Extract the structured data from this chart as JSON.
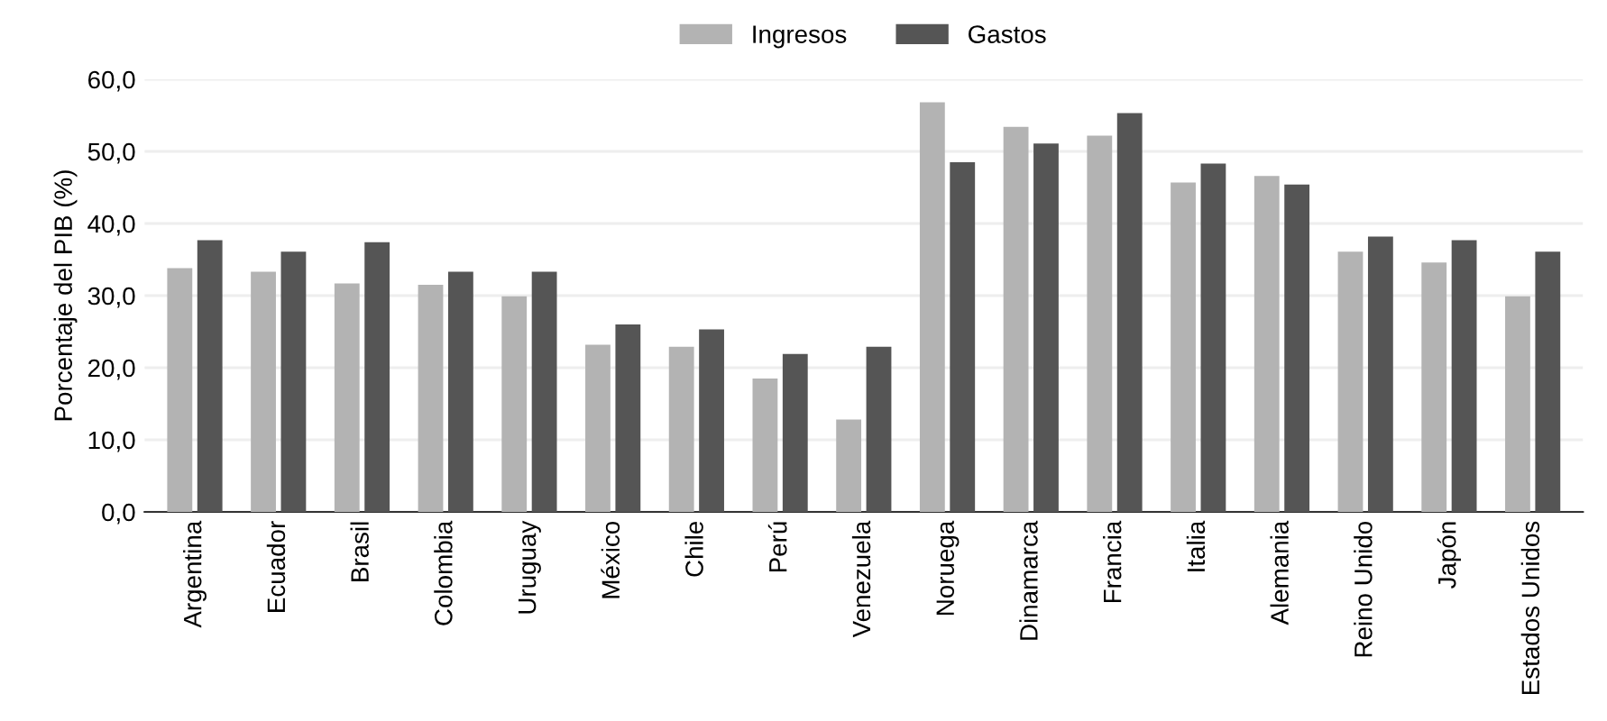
{
  "chart_data": {
    "type": "bar",
    "ylabel": "Porcentaje del PIB (%)",
    "categories": [
      "Argentina",
      "Ecuador",
      "Brasil",
      "Colombia",
      "Uruguay",
      "México",
      "Chile",
      "Perú",
      "Venezuela",
      "Noruega",
      "Dinamarca",
      "Francia",
      "Italia",
      "Alemania",
      "Reino Unido",
      "Japón",
      "Estados Unidos"
    ],
    "series": [
      {
        "name": "Ingresos",
        "color": "#b3b3b3",
        "values": [
          33.8,
          33.3,
          31.7,
          31.5,
          29.9,
          23.2,
          22.9,
          18.5,
          12.8,
          56.8,
          53.4,
          52.2,
          45.7,
          46.6,
          36.1,
          34.6,
          29.9
        ]
      },
      {
        "name": "Gastos",
        "color": "#555555",
        "values": [
          37.7,
          36.1,
          37.4,
          33.3,
          33.3,
          26.0,
          25.3,
          21.9,
          22.9,
          48.5,
          51.1,
          55.3,
          48.3,
          45.4,
          38.2,
          37.7,
          36.1
        ]
      }
    ],
    "ylim": [
      0,
      60
    ],
    "yticks": [
      {
        "value": 0,
        "label": "0,0"
      },
      {
        "value": 10,
        "label": "10,0"
      },
      {
        "value": 20,
        "label": "20,0"
      },
      {
        "value": 30,
        "label": "30,0"
      },
      {
        "value": 40,
        "label": "40,0"
      },
      {
        "value": 50,
        "label": "50,0"
      },
      {
        "value": 60,
        "label": "60,0"
      }
    ],
    "grid": "y",
    "legend": "top"
  }
}
